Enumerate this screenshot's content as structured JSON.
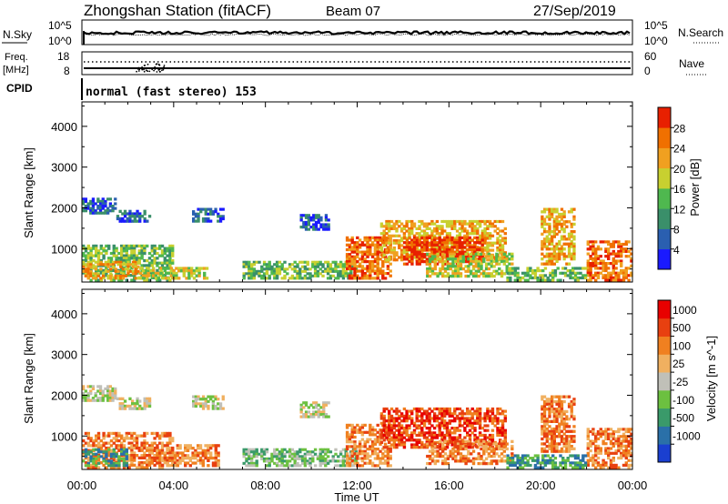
{
  "header": {
    "station": "Zhongshan Station (fitACF)",
    "beam": "Beam 07",
    "date": "27/Sep/2019"
  },
  "noise_panel": {
    "left_label": "N.Sky",
    "right_label": "N.Search",
    "ticks": [
      "10^5",
      "10^0"
    ]
  },
  "freq_panel": {
    "left_label_1": "Freq.",
    "left_label_2": "[MHz]",
    "left_ticks": [
      "18",
      "8"
    ],
    "right_label": "Nave",
    "right_ticks": [
      "60",
      "0"
    ]
  },
  "cpid": {
    "label": "CPID",
    "text": "normal (fast stereo) 153"
  },
  "chart_data": [
    {
      "type": "heatmap",
      "title": "",
      "xlabel": "Time UT",
      "ylabel": "Slant Range [km]",
      "xticks": [
        "00:00",
        "04:00",
        "08:00",
        "12:00",
        "16:00",
        "20:00",
        "00:00"
      ],
      "xlim": [
        0,
        24
      ],
      "yticks": [
        1000,
        2000,
        3000,
        4000
      ],
      "ylim": [
        180,
        4600
      ],
      "colorbar": {
        "label": "Power [dB]",
        "range": [
          0,
          30
        ],
        "ticks": [
          "4",
          "8",
          "12",
          "16",
          "20",
          "24",
          "28"
        ],
        "colors": [
          "#1a1aff",
          "#2a5fb0",
          "#3a8f6a",
          "#4fb84f",
          "#c8d030",
          "#f0a020",
          "#f07000",
          "#e82000"
        ]
      },
      "regions": [
        {
          "t0": 0.0,
          "t1": 1.5,
          "r0": 1850,
          "r1": 2250,
          "level": 1
        },
        {
          "t0": 1.5,
          "t1": 3.0,
          "r0": 1650,
          "r1": 1950,
          "level": 1
        },
        {
          "t0": 4.8,
          "t1": 6.2,
          "r0": 1650,
          "r1": 2000,
          "level": 1
        },
        {
          "t0": 9.5,
          "t1": 10.8,
          "r0": 1450,
          "r1": 1850,
          "level": 1
        },
        {
          "t0": 0.0,
          "t1": 4.0,
          "r0": 200,
          "r1": 1100,
          "level": 3
        },
        {
          "t0": 0.0,
          "t1": 2.5,
          "r0": 250,
          "r1": 700,
          "level": 5
        },
        {
          "t0": 2.5,
          "t1": 5.5,
          "r0": 250,
          "r1": 550,
          "level": 4
        },
        {
          "t0": 7.0,
          "t1": 12.0,
          "r0": 250,
          "r1": 700,
          "level": 3
        },
        {
          "t0": 11.5,
          "t1": 13.5,
          "r0": 250,
          "r1": 1300,
          "level": 6
        },
        {
          "t0": 13.0,
          "t1": 18.5,
          "r0": 700,
          "r1": 1700,
          "level": 5
        },
        {
          "t0": 14.0,
          "t1": 17.5,
          "r0": 600,
          "r1": 1300,
          "level": 7
        },
        {
          "t0": 15.0,
          "t1": 18.8,
          "r0": 300,
          "r1": 900,
          "level": 4
        },
        {
          "t0": 20.0,
          "t1": 21.5,
          "r0": 600,
          "r1": 2000,
          "level": 5
        },
        {
          "t0": 22.0,
          "t1": 24.0,
          "r0": 200,
          "r1": 1200,
          "level": 6
        },
        {
          "t0": 18.5,
          "t1": 22.0,
          "r0": 200,
          "r1": 550,
          "level": 3
        }
      ]
    },
    {
      "type": "heatmap",
      "title": "",
      "xlabel": "Time UT",
      "ylabel": "Slant Range [km]",
      "xticks": [
        "00:00",
        "04:00",
        "08:00",
        "12:00",
        "16:00",
        "20:00",
        "00:00"
      ],
      "xlim": [
        0,
        24
      ],
      "yticks": [
        1000,
        2000,
        3000,
        4000
      ],
      "ylim": [
        180,
        4600
      ],
      "colorbar": {
        "label": "Velocity [m s^-1]",
        "ticks": [
          "1000",
          "500",
          "100",
          "25",
          "-25",
          "-100",
          "-500",
          "-1000"
        ],
        "colors": [
          "#1a3fd0",
          "#2a70a8",
          "#3a9a6a",
          "#6cc040",
          "#c0c0b8",
          "#f0b060",
          "#f08020",
          "#e84010",
          "#e80000"
        ]
      },
      "regions": [
        {
          "t0": 0.0,
          "t1": 1.5,
          "r0": 1850,
          "r1": 2250,
          "level": 4
        },
        {
          "t0": 1.5,
          "t1": 3.0,
          "r0": 1650,
          "r1": 1950,
          "level": 4
        },
        {
          "t0": 4.8,
          "t1": 6.2,
          "r0": 1650,
          "r1": 2000,
          "level": 4
        },
        {
          "t0": 9.5,
          "t1": 10.8,
          "r0": 1450,
          "r1": 1850,
          "level": 4
        },
        {
          "t0": 0.0,
          "t1": 4.0,
          "r0": 200,
          "r1": 1100,
          "level": 6
        },
        {
          "t0": 0.0,
          "t1": 2.0,
          "r0": 250,
          "r1": 700,
          "level": 2
        },
        {
          "t0": 3.0,
          "t1": 6.0,
          "r0": 250,
          "r1": 800,
          "level": 6
        },
        {
          "t0": 7.0,
          "t1": 12.0,
          "r0": 250,
          "r1": 700,
          "level": 3
        },
        {
          "t0": 11.5,
          "t1": 13.5,
          "r0": 250,
          "r1": 1300,
          "level": 6
        },
        {
          "t0": 13.0,
          "t1": 18.5,
          "r0": 700,
          "r1": 1700,
          "level": 7
        },
        {
          "t0": 15.0,
          "t1": 18.8,
          "r0": 300,
          "r1": 900,
          "level": 6
        },
        {
          "t0": 20.0,
          "t1": 21.5,
          "r0": 600,
          "r1": 2000,
          "level": 6
        },
        {
          "t0": 22.0,
          "t1": 24.0,
          "r0": 200,
          "r1": 1200,
          "level": 6
        },
        {
          "t0": 18.5,
          "t1": 22.0,
          "r0": 200,
          "r1": 550,
          "level": 2
        }
      ]
    }
  ]
}
